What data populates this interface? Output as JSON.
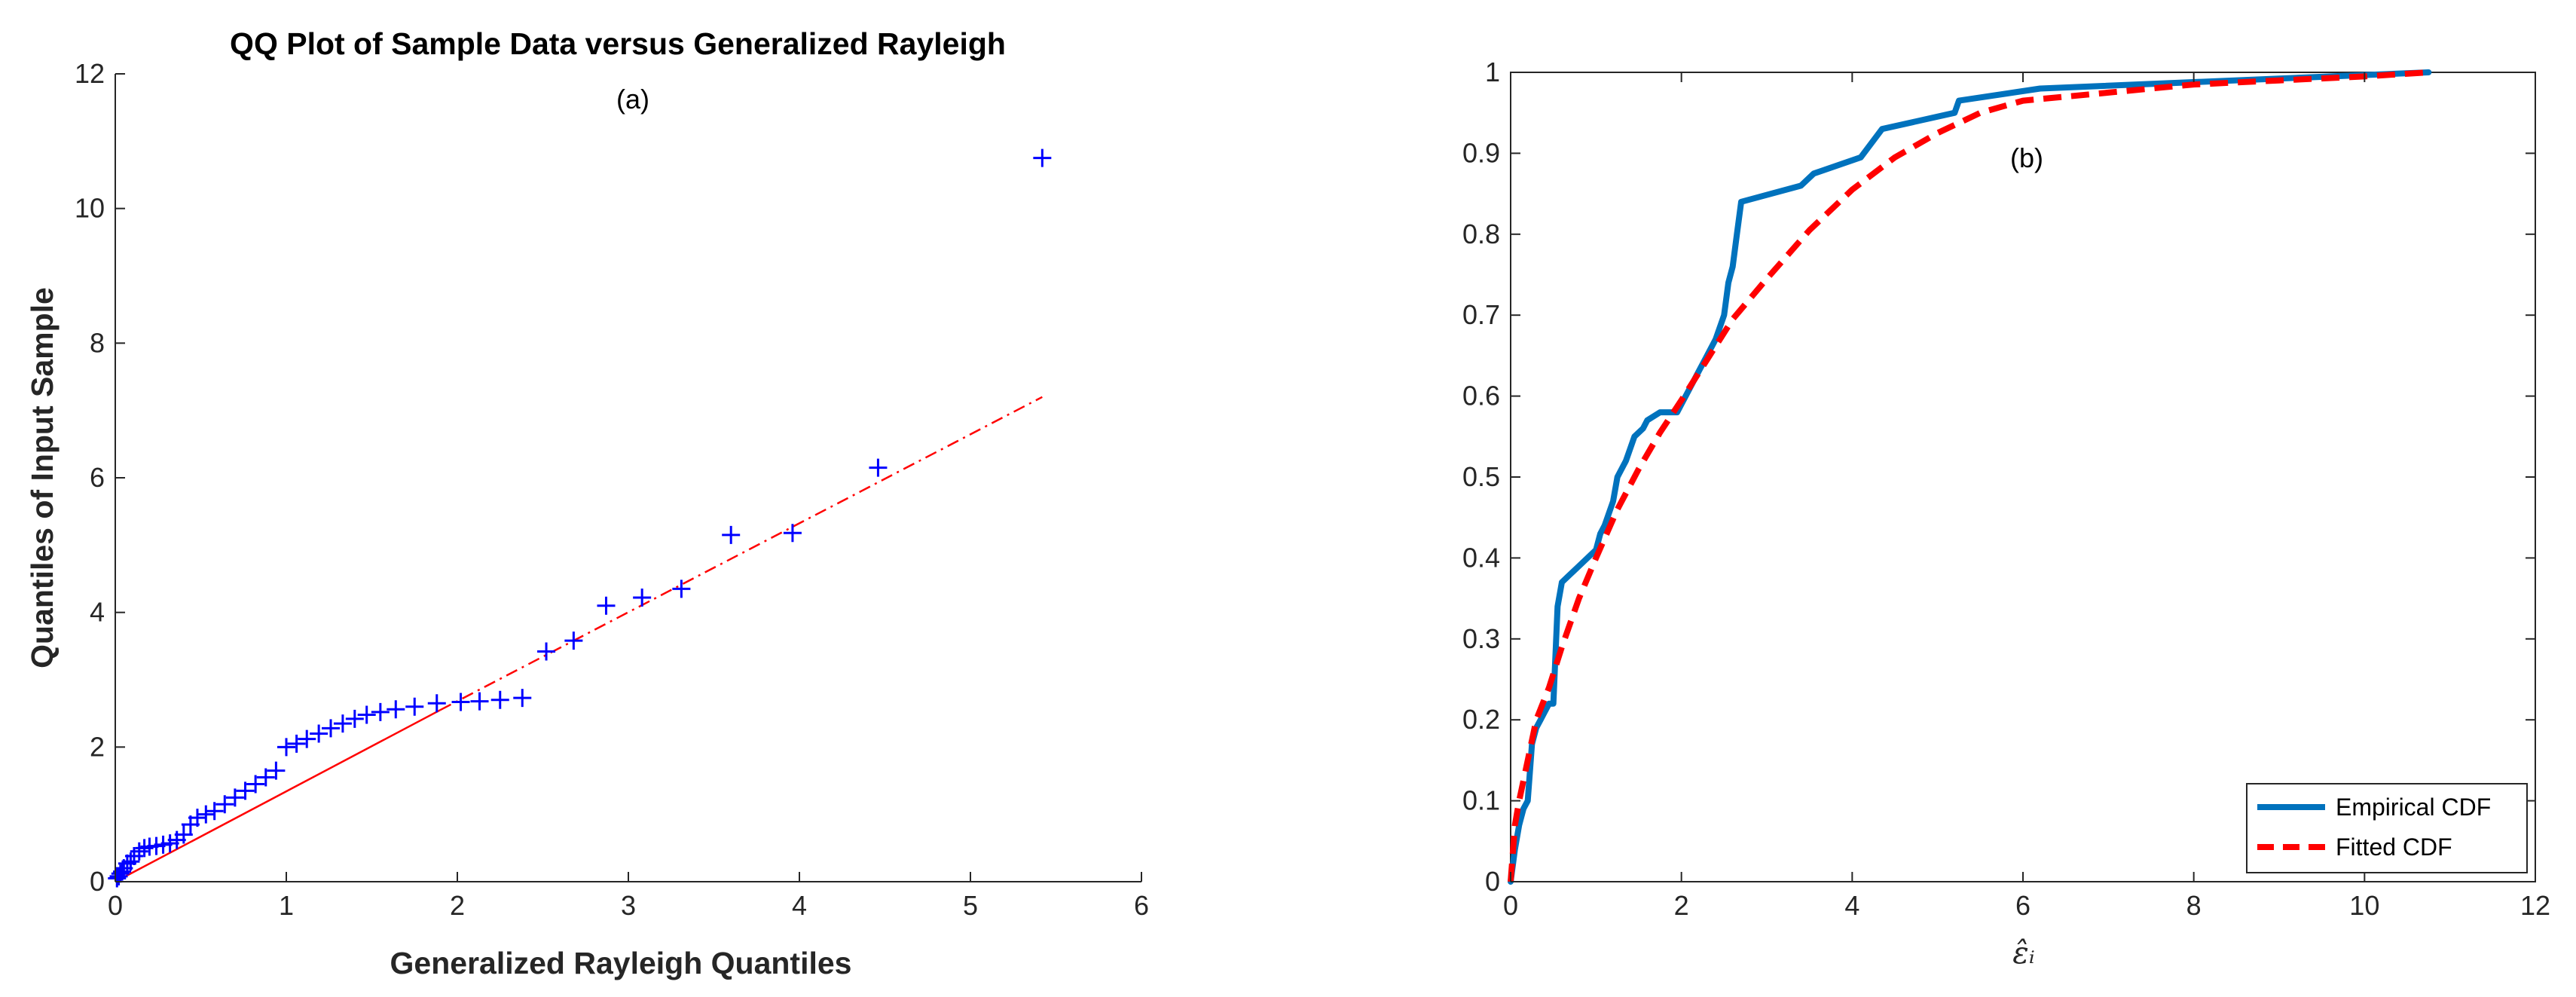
{
  "chart_data": [
    {
      "type": "scatter",
      "title": "QQ Plot of Sample Data versus Generalized Rayleigh",
      "annotation": "(a)",
      "xlabel": "Generalized Rayleigh Quantiles",
      "ylabel": "Quantiles of Input Sample",
      "xlim": [
        0,
        6
      ],
      "ylim": [
        0,
        12
      ],
      "xticks": [
        "0",
        "1",
        "2",
        "3",
        "4",
        "5",
        "6"
      ],
      "yticks": [
        "0",
        "2",
        "4",
        "6",
        "8",
        "10",
        "12"
      ],
      "grid": false,
      "marker_color": "#0000ff",
      "line_color": "#ff0000",
      "points": [
        [
          0.01,
          0.05
        ],
        [
          0.02,
          0.08
        ],
        [
          0.03,
          0.12
        ],
        [
          0.04,
          0.15
        ],
        [
          0.05,
          0.2
        ],
        [
          0.07,
          0.27
        ],
        [
          0.09,
          0.3
        ],
        [
          0.11,
          0.38
        ],
        [
          0.14,
          0.45
        ],
        [
          0.17,
          0.5
        ],
        [
          0.2,
          0.52
        ],
        [
          0.24,
          0.53
        ],
        [
          0.28,
          0.55
        ],
        [
          0.32,
          0.57
        ],
        [
          0.36,
          0.62
        ],
        [
          0.4,
          0.7
        ],
        [
          0.44,
          0.85
        ],
        [
          0.48,
          0.95
        ],
        [
          0.53,
          1.0
        ],
        [
          0.58,
          1.05
        ],
        [
          0.64,
          1.15
        ],
        [
          0.7,
          1.25
        ],
        [
          0.76,
          1.35
        ],
        [
          0.82,
          1.45
        ],
        [
          0.88,
          1.55
        ],
        [
          0.94,
          1.65
        ],
        [
          1.0,
          2.0
        ],
        [
          1.06,
          2.05
        ],
        [
          1.12,
          2.12
        ],
        [
          1.19,
          2.2
        ],
        [
          1.26,
          2.28
        ],
        [
          1.33,
          2.35
        ],
        [
          1.4,
          2.42
        ],
        [
          1.47,
          2.48
        ],
        [
          1.55,
          2.52
        ],
        [
          1.64,
          2.56
        ],
        [
          1.75,
          2.6
        ],
        [
          1.88,
          2.65
        ],
        [
          2.02,
          2.67
        ],
        [
          2.13,
          2.68
        ],
        [
          2.25,
          2.7
        ],
        [
          2.38,
          2.73
        ],
        [
          2.52,
          3.42
        ],
        [
          2.68,
          3.58
        ],
        [
          2.87,
          4.1
        ],
        [
          3.08,
          4.22
        ],
        [
          3.31,
          4.35
        ],
        [
          3.6,
          5.15
        ],
        [
          3.96,
          5.18
        ],
        [
          4.46,
          6.15
        ],
        [
          5.42,
          10.75
        ]
      ],
      "reference_line": {
        "solid": {
          "x": [
            0,
            1.9
          ],
          "y": [
            0,
            2.55
          ]
        },
        "dashdot": {
          "x": [
            1.9,
            5.42
          ],
          "y": [
            2.55,
            7.2
          ]
        }
      }
    },
    {
      "type": "line",
      "annotation": "(b)",
      "xlabel": "ε̂ᵢ",
      "ylabel": "",
      "xlim": [
        0,
        12
      ],
      "ylim": [
        0,
        1
      ],
      "xticks": [
        "0",
        "2",
        "4",
        "6",
        "8",
        "10",
        "12"
      ],
      "yticks": [
        "0",
        "0.1",
        "0.2",
        "0.3",
        "0.4",
        "0.5",
        "0.6",
        "0.7",
        "0.8",
        "0.9",
        "1"
      ],
      "grid": false,
      "legend_position": "bottom-right",
      "series": [
        {
          "name": "Empirical CDF",
          "color": "#0072bd",
          "style": "solid",
          "x": [
            0,
            0.05,
            0.1,
            0.15,
            0.2,
            0.25,
            0.3,
            0.35,
            0.4,
            0.45,
            0.5,
            0.55,
            0.6,
            0.7,
            0.8,
            0.9,
            1.0,
            1.05,
            1.1,
            1.2,
            1.25,
            1.35,
            1.45,
            1.55,
            1.6,
            1.75,
            1.95,
            2.0,
            2.05,
            2.2,
            2.3,
            2.4,
            2.5,
            2.55,
            2.6,
            2.65,
            2.7,
            3.4,
            3.55,
            4.1,
            4.35,
            5.2,
            5.25,
            6.2,
            10.75
          ],
          "y": [
            0,
            0.04,
            0.07,
            0.09,
            0.1,
            0.17,
            0.19,
            0.2,
            0.21,
            0.22,
            0.22,
            0.34,
            0.37,
            0.38,
            0.39,
            0.4,
            0.41,
            0.43,
            0.44,
            0.47,
            0.5,
            0.52,
            0.55,
            0.56,
            0.57,
            0.58,
            0.58,
            0.59,
            0.6,
            0.63,
            0.65,
            0.67,
            0.7,
            0.74,
            0.76,
            0.8,
            0.84,
            0.86,
            0.875,
            0.895,
            0.93,
            0.95,
            0.965,
            0.98,
            1.0
          ]
        },
        {
          "name": "Fitted CDF",
          "color": "#ff0000",
          "style": "dashed",
          "x": [
            0,
            0.05,
            0.1,
            0.2,
            0.3,
            0.45,
            0.6,
            0.8,
            1.0,
            1.25,
            1.5,
            1.75,
            2.0,
            2.3,
            2.6,
            3.0,
            3.5,
            4.0,
            4.5,
            5.0,
            5.5,
            6.0,
            7.0,
            8.0,
            9.0,
            10.0,
            10.75
          ],
          "y": [
            0,
            0.07,
            0.1,
            0.15,
            0.2,
            0.24,
            0.29,
            0.35,
            0.4,
            0.46,
            0.51,
            0.555,
            0.595,
            0.645,
            0.695,
            0.745,
            0.805,
            0.855,
            0.895,
            0.925,
            0.95,
            0.965,
            0.975,
            0.985,
            0.99,
            0.995,
            1.0
          ]
        }
      ]
    }
  ]
}
